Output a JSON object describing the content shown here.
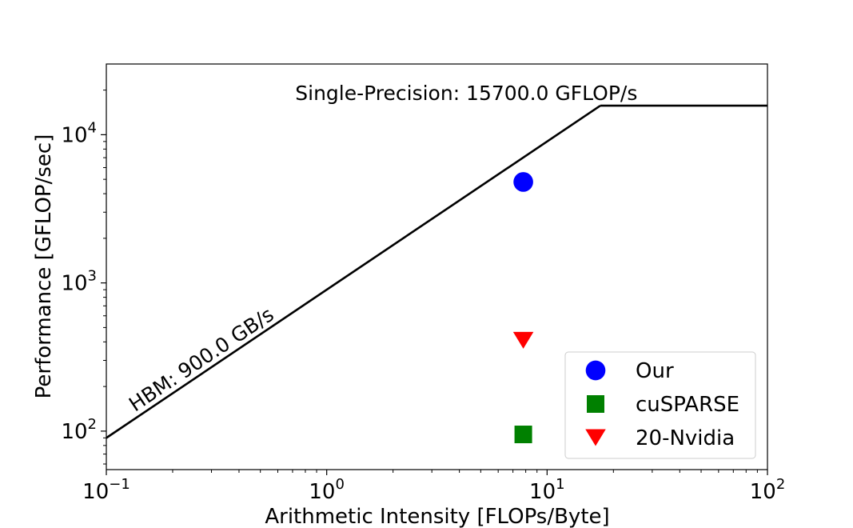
{
  "chart_data": {
    "type": "scatter",
    "title": "",
    "xlabel": "Arithmetic Intensity [FLOPs/Byte]",
    "ylabel": "Performance [GFLOP/sec]",
    "xscale": "log",
    "yscale": "log",
    "xlim": [
      0.1,
      100
    ],
    "ylim": [
      55,
      30000
    ],
    "grid": false,
    "legend_position": "lower-right",
    "x_ticks": [
      {
        "value": 0.1,
        "base": "10",
        "exp": "−1"
      },
      {
        "value": 1,
        "base": "10",
        "exp": "0"
      },
      {
        "value": 10,
        "base": "10",
        "exp": "1"
      },
      {
        "value": 100,
        "base": "10",
        "exp": "2"
      }
    ],
    "y_ticks": [
      {
        "value": 100,
        "base": "10",
        "exp": "2"
      },
      {
        "value": 1000,
        "base": "10",
        "exp": "3"
      },
      {
        "value": 10000,
        "base": "10",
        "exp": "4"
      }
    ],
    "roofline": {
      "bandwidth_gbs": 900.0,
      "peak_gflops": 15700.0,
      "bandwidth_label": "HBM: 900.0 GB/s",
      "peak_label": "Single-Precision: 15700.0 GFLOP/s",
      "color": "#000000"
    },
    "series": [
      {
        "name": "Our",
        "marker": "circle",
        "color": "#0000ff",
        "x": [
          7.8
        ],
        "y": [
          4800
        ]
      },
      {
        "name": "cuSPARSE",
        "marker": "square",
        "color": "#008000",
        "x": [
          7.8
        ],
        "y": [
          95
        ]
      },
      {
        "name": "20-Nvidia",
        "marker": "triangle-down",
        "color": "#ff0000",
        "x": [
          7.8
        ],
        "y": [
          410
        ]
      }
    ]
  }
}
